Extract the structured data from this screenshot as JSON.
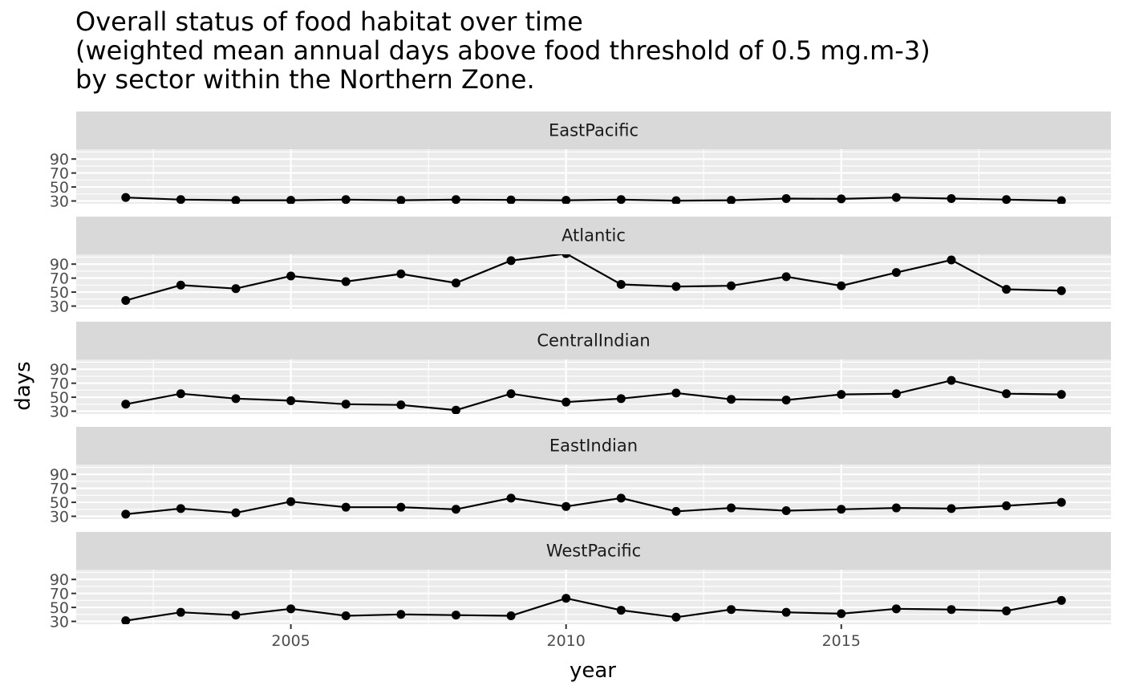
{
  "chart_data": {
    "type": "line",
    "title_lines": [
      "Overall status of food habitat over time",
      "(weighted mean annual days above food threshold of 0.5 mg.m-3)",
      "by sector within the Northern Zone."
    ],
    "xlabel": "year",
    "ylabel": "days",
    "x": [
      2002,
      2003,
      2004,
      2005,
      2006,
      2007,
      2008,
      2009,
      2010,
      2011,
      2012,
      2013,
      2014,
      2015,
      2016,
      2017,
      2018,
      2019
    ],
    "xlim": [
      2001.1,
      2019.9
    ],
    "x_ticks": [
      2005,
      2010,
      2015
    ],
    "x_tick_labels": [
      "2005",
      "2010",
      "2015"
    ],
    "ylim": [
      26,
      104
    ],
    "y_ticks": [
      30,
      50,
      70,
      90
    ],
    "y_tick_labels": [
      "30",
      "50",
      "70",
      "90"
    ],
    "facet_layout": "vertical, shared x and y axes",
    "grid": true,
    "series": [
      {
        "name": "EastPacific",
        "values": [
          35,
          32,
          31,
          31,
          32,
          31,
          32,
          31.5,
          31,
          32,
          30.5,
          31,
          33.5,
          33,
          35,
          33.5,
          32,
          30.5
        ]
      },
      {
        "name": "Atlantic",
        "values": [
          38,
          60,
          55,
          73,
          65,
          76,
          63,
          95,
          105,
          61,
          58,
          59,
          72,
          59,
          78,
          96,
          54,
          52
        ]
      },
      {
        "name": "CentralIndian",
        "values": [
          40,
          55,
          48,
          45,
          40,
          39,
          31.5,
          55,
          43,
          48,
          56,
          47,
          46,
          54,
          55,
          74,
          55,
          54
        ]
      },
      {
        "name": "EastIndian",
        "values": [
          33,
          41,
          35,
          51,
          43,
          43,
          40,
          56,
          44,
          56,
          37,
          42,
          38,
          40,
          42,
          41,
          45,
          50
        ]
      },
      {
        "name": "WestPacific",
        "values": [
          31,
          43,
          39,
          48,
          38,
          40,
          39,
          38,
          63,
          46,
          36,
          47,
          43,
          41,
          48,
          47,
          45,
          60
        ]
      }
    ]
  }
}
